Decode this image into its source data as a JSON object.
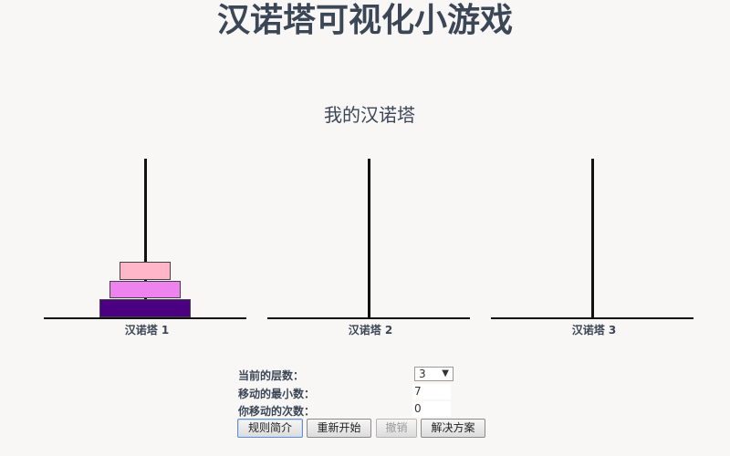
{
  "header": {
    "title": "汉诺塔可视化小游戏",
    "subtitle": "我的汉诺塔"
  },
  "towers": [
    {
      "label": "汉诺塔 1"
    },
    {
      "label": "汉诺塔 2"
    },
    {
      "label": "汉诺塔 3"
    }
  ],
  "disks": [
    {
      "level": 1,
      "color": "#ffb6c8"
    },
    {
      "level": 2,
      "color": "#ee82ee"
    },
    {
      "level": 3,
      "color": "#4b0082"
    }
  ],
  "controls": {
    "level_label": "当前的层数：",
    "level_value": "3",
    "min_moves_label": "移动的最小数：",
    "min_moves_value": "7",
    "your_moves_label": "你移动的次数：",
    "your_moves_value": "0"
  },
  "buttons": {
    "rules": "规则简介",
    "restart": "重新开始",
    "undo": "撤销",
    "solve": "解决方案"
  }
}
